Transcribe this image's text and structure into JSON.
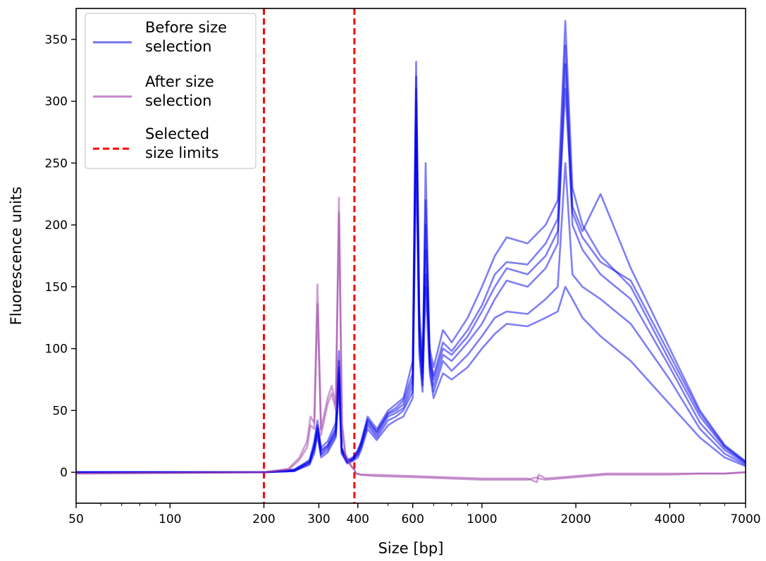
{
  "chart_data": {
    "type": "line",
    "title": "",
    "xlabel": "Size [bp]",
    "ylabel": "Fluorescence units",
    "xscale": "log",
    "xlim": [
      50,
      7000
    ],
    "ylim": [
      -25,
      375
    ],
    "grid": false,
    "legend_position": "top-left",
    "x_ticks": [
      50,
      100,
      200,
      300,
      400,
      600,
      1000,
      2000,
      4000,
      7000
    ],
    "x_tick_labels": [
      "50",
      "100",
      "200",
      "300",
      "400",
      "600",
      "1000",
      "2000",
      "4000",
      "7000"
    ],
    "y_ticks": [
      0,
      50,
      100,
      150,
      200,
      250,
      300,
      350
    ],
    "y_tick_labels": [
      "0",
      "50",
      "100",
      "150",
      "200",
      "250",
      "300",
      "350"
    ],
    "legend": [
      {
        "label": "Before size selection",
        "lines": [
          "Before size",
          "selection"
        ],
        "color": "#6b6bea",
        "style": "solid"
      },
      {
        "label": "After size selection",
        "lines": [
          "After size",
          "selection"
        ],
        "color": "#c47fc8",
        "style": "solid"
      },
      {
        "label": "Selected size limits",
        "lines": [
          "Selected",
          "size limits"
        ],
        "color": "#ff0000",
        "style": "dashed"
      }
    ],
    "vlines": [
      {
        "name": "Selected size limits",
        "x": 200,
        "color": "#ff0000",
        "style": "dashed"
      },
      {
        "name": "Selected size limits",
        "x": 390,
        "color": "#ff0000",
        "style": "dashed"
      }
    ],
    "series": [
      {
        "group": "Before size selection",
        "color": "#0000ee",
        "x": [
          50,
          200,
          250,
          280,
          290,
          297,
          305,
          320,
          340,
          348,
          355,
          370,
          385,
          400,
          410,
          430,
          460,
          500,
          530,
          560,
          600,
          615,
          630,
          645,
          660,
          680,
          700,
          750,
          800,
          900,
          1000,
          1100,
          1200,
          1400,
          1600,
          1750,
          1850,
          1950,
          2100,
          2400,
          3000,
          4000,
          5000,
          6000,
          7000
        ],
        "y": [
          0,
          0,
          2,
          10,
          25,
          42,
          20,
          25,
          40,
          98,
          20,
          10,
          12,
          18,
          25,
          45,
          35,
          50,
          55,
          60,
          90,
          332,
          130,
          90,
          160,
          100,
          85,
          115,
          105,
          125,
          150,
          175,
          190,
          185,
          200,
          220,
          365,
          230,
          200,
          175,
          150,
          90,
          45,
          20,
          8
        ]
      },
      {
        "group": "Before size selection",
        "color": "#0000ee",
        "x": [
          50,
          200,
          250,
          280,
          290,
          297,
          305,
          320,
          340,
          348,
          355,
          370,
          385,
          400,
          410,
          430,
          460,
          500,
          530,
          560,
          600,
          615,
          630,
          645,
          660,
          680,
          700,
          750,
          800,
          900,
          1000,
          1100,
          1200,
          1400,
          1600,
          1750,
          1850,
          1950,
          2100,
          2400,
          3000,
          4000,
          5000,
          6000,
          7000
        ],
        "y": [
          0,
          0,
          1,
          8,
          20,
          35,
          15,
          20,
          32,
          80,
          18,
          8,
          10,
          15,
          22,
          40,
          30,
          45,
          48,
          52,
          70,
          300,
          110,
          75,
          250,
          90,
          70,
          95,
          90,
          105,
          120,
          140,
          155,
          150,
          165,
          185,
          330,
          200,
          180,
          160,
          140,
          85,
          40,
          18,
          7
        ]
      },
      {
        "group": "Before size selection",
        "color": "#0000ee",
        "x": [
          50,
          200,
          250,
          280,
          290,
          297,
          305,
          320,
          340,
          348,
          355,
          370,
          385,
          400,
          410,
          430,
          460,
          500,
          530,
          560,
          600,
          615,
          630,
          645,
          660,
          680,
          700,
          750,
          800,
          900,
          1000,
          1100,
          1200,
          1400,
          1600,
          1750,
          1850,
          1950,
          2100,
          2400,
          3000,
          4000,
          5000,
          6000,
          7000
        ],
        "y": [
          0,
          0,
          1,
          6,
          15,
          30,
          12,
          16,
          28,
          70,
          15,
          7,
          9,
          12,
          18,
          35,
          26,
          38,
          42,
          45,
          60,
          260,
          95,
          65,
          150,
          80,
          60,
          80,
          75,
          85,
          100,
          112,
          120,
          118,
          125,
          130,
          150,
          140,
          125,
          110,
          90,
          55,
          28,
          12,
          5
        ]
      },
      {
        "group": "Before size selection",
        "color": "#0000ee",
        "x": [
          50,
          200,
          250,
          280,
          290,
          297,
          305,
          320,
          340,
          348,
          355,
          370,
          385,
          400,
          410,
          430,
          460,
          500,
          530,
          560,
          600,
          615,
          630,
          645,
          660,
          680,
          700,
          750,
          800,
          900,
          1000,
          1100,
          1200,
          1400,
          1600,
          1750,
          1850,
          1950,
          2100,
          2400,
          3000,
          4000,
          5000,
          6000,
          7000
        ],
        "y": [
          0,
          0,
          2,
          9,
          22,
          38,
          18,
          22,
          36,
          90,
          19,
          9,
          11,
          17,
          24,
          43,
          33,
          48,
          52,
          58,
          80,
          320,
          120,
          85,
          200,
          95,
          78,
          105,
          98,
          115,
          135,
          160,
          170,
          168,
          185,
          205,
          345,
          215,
          195,
          225,
          165,
          100,
          50,
          22,
          9
        ]
      },
      {
        "group": "Before size selection",
        "color": "#0000ee",
        "x": [
          50,
          200,
          250,
          280,
          290,
          297,
          305,
          320,
          340,
          348,
          355,
          370,
          385,
          400,
          410,
          430,
          460,
          500,
          530,
          560,
          600,
          615,
          630,
          645,
          660,
          680,
          700,
          750,
          800,
          900,
          1000,
          1100,
          1200,
          1400,
          1600,
          1750,
          1850,
          1950,
          2100,
          2400,
          3000,
          4000,
          5000,
          6000,
          7000
        ],
        "y": [
          0,
          0,
          1,
          7,
          18,
          32,
          14,
          18,
          30,
          75,
          16,
          8,
          10,
          14,
          20,
          38,
          28,
          42,
          45,
          50,
          65,
          280,
          100,
          70,
          180,
          85,
          65,
          90,
          82,
          95,
          110,
          125,
          130,
          128,
          140,
          150,
          250,
          160,
          150,
          140,
          120,
          75,
          35,
          15,
          6
        ]
      },
      {
        "group": "Before size selection",
        "color": "#0000ee",
        "x": [
          50,
          200,
          250,
          280,
          290,
          297,
          305,
          320,
          340,
          348,
          355,
          370,
          385,
          400,
          410,
          430,
          460,
          500,
          530,
          560,
          600,
          615,
          630,
          645,
          660,
          680,
          700,
          750,
          800,
          900,
          1000,
          1100,
          1200,
          1400,
          1600,
          1750,
          1850,
          1950,
          2100,
          2400,
          3000,
          4000,
          5000,
          6000,
          7000
        ],
        "y": [
          0,
          0,
          2,
          8,
          21,
          36,
          17,
          21,
          34,
          85,
          18,
          9,
          11,
          16,
          23,
          42,
          32,
          47,
          50,
          55,
          75,
          310,
          115,
          80,
          220,
          92,
          75,
          100,
          95,
          110,
          130,
          150,
          165,
          160,
          175,
          195,
          310,
          210,
          190,
          170,
          155,
          95,
          48,
          21,
          8
        ]
      },
      {
        "group": "After size selection",
        "color": "#9b3da6",
        "x": [
          50,
          200,
          240,
          260,
          275,
          282,
          290,
          297,
          305,
          320,
          330,
          340,
          348,
          356,
          365,
          380,
          390,
          395,
          410,
          450,
          600,
          1000,
          1400,
          1500,
          1520,
          1600,
          2000,
          2500,
          3000,
          4000,
          5000,
          6000,
          7000
        ],
        "y": [
          -1,
          0,
          3,
          12,
          25,
          45,
          40,
          152,
          35,
          60,
          70,
          55,
          222,
          40,
          15,
          6,
          2,
          -1,
          -2,
          -2,
          -3,
          -5,
          -5,
          -8,
          -2,
          -5,
          -3,
          -1,
          -1,
          -1,
          -1,
          -1,
          0
        ]
      },
      {
        "group": "After size selection",
        "color": "#9b3da6",
        "x": [
          50,
          200,
          240,
          260,
          275,
          282,
          290,
          297,
          305,
          320,
          330,
          340,
          348,
          356,
          365,
          380,
          390,
          395,
          410,
          450,
          600,
          1000,
          1400,
          1500,
          1520,
          1600,
          2000,
          2500,
          3000,
          4000,
          5000,
          6000,
          7000
        ],
        "y": [
          -1,
          0,
          2,
          10,
          20,
          38,
          35,
          136,
          30,
          55,
          64,
          50,
          210,
          35,
          12,
          5,
          2,
          -1,
          -2,
          -3,
          -4,
          -6,
          -6,
          -4,
          -5,
          -6,
          -4,
          -2,
          -2,
          -2,
          -1,
          -1,
          0
        ]
      }
    ]
  }
}
